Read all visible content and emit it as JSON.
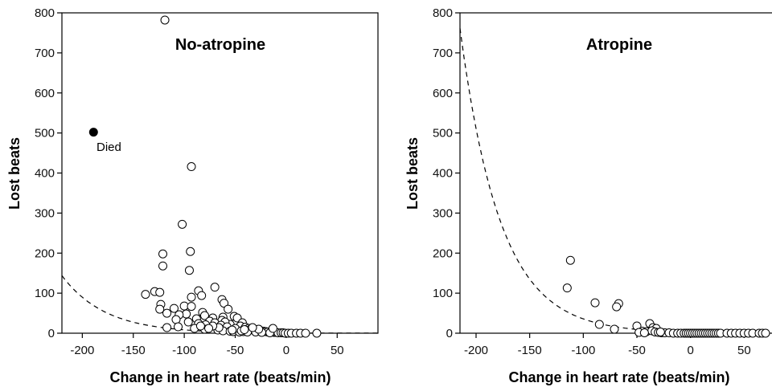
{
  "chart_data": [
    {
      "type": "scatter",
      "title": "No-atropine",
      "xlabel": "Change in heart rate (beats/min)",
      "ylabel": "Lost beats",
      "xlim": [
        -220,
        90
      ],
      "ylim": [
        0,
        800
      ],
      "xticks": [
        -200,
        -150,
        -100,
        -50,
        0,
        50
      ],
      "yticks": [
        0,
        100,
        200,
        300,
        400,
        500,
        600,
        700,
        800
      ],
      "fit_curve": "dashed exponential",
      "annotation": {
        "text": "Died",
        "x": -189,
        "y": 502
      },
      "filled_points": [
        [
          -189,
          502
        ]
      ],
      "points": [
        [
          -119,
          782
        ],
        [
          -93,
          416
        ],
        [
          -102,
          272
        ],
        [
          -94,
          204
        ],
        [
          -121,
          198
        ],
        [
          -121,
          168
        ],
        [
          -95,
          157
        ],
        [
          -70,
          115
        ],
        [
          -86,
          106
        ],
        [
          -129,
          104
        ],
        [
          -124,
          102
        ],
        [
          -138,
          97
        ],
        [
          -83,
          94
        ],
        [
          -93,
          90
        ],
        [
          -63,
          84
        ],
        [
          -61,
          75
        ],
        [
          -123,
          72
        ],
        [
          -100,
          68
        ],
        [
          -110,
          62
        ],
        [
          -124,
          60
        ],
        [
          -57,
          60
        ],
        [
          -93,
          67
        ],
        [
          -117,
          50
        ],
        [
          -98,
          48
        ],
        [
          -105,
          46
        ],
        [
          -82,
          52
        ],
        [
          -80,
          44
        ],
        [
          -88,
          36
        ],
        [
          -62,
          40
        ],
        [
          -72,
          38
        ],
        [
          -63,
          32
        ],
        [
          -51,
          42
        ],
        [
          -48,
          38
        ],
        [
          -43,
          26
        ],
        [
          -55,
          22
        ],
        [
          -60,
          28
        ],
        [
          -108,
          34
        ],
        [
          -96,
          28
        ],
        [
          -75,
          30
        ],
        [
          -70,
          26
        ],
        [
          -86,
          24
        ],
        [
          -79,
          21
        ],
        [
          -64,
          20
        ],
        [
          -58,
          16
        ],
        [
          -45,
          18
        ],
        [
          -40,
          15
        ],
        [
          -37,
          12
        ],
        [
          -35,
          10
        ],
        [
          -32,
          8
        ],
        [
          -28,
          7
        ],
        [
          -25,
          6
        ],
        [
          -22,
          5
        ],
        [
          -20,
          4
        ],
        [
          -18,
          3
        ],
        [
          -15,
          3
        ],
        [
          -12,
          2
        ],
        [
          -10,
          2
        ],
        [
          -8,
          1
        ],
        [
          -5,
          1
        ],
        [
          -3,
          1
        ],
        [
          -1,
          0
        ],
        [
          2,
          0
        ],
        [
          5,
          0
        ],
        [
          10,
          0
        ],
        [
          14,
          0
        ],
        [
          19,
          0
        ],
        [
          30,
          0
        ],
        [
          -117,
          14
        ],
        [
          -106,
          16
        ],
        [
          -90,
          12
        ],
        [
          -80,
          10
        ],
        [
          -67,
          8
        ],
        [
          -62,
          6
        ],
        [
          -55,
          5
        ],
        [
          -52,
          4
        ],
        [
          -46,
          3
        ],
        [
          -42,
          4
        ],
        [
          -38,
          3
        ],
        [
          -50,
          12
        ],
        [
          -66,
          14
        ],
        [
          -72,
          18
        ],
        [
          -76,
          12
        ],
        [
          -84,
          18
        ],
        [
          -53,
          8
        ],
        [
          -44,
          6
        ],
        [
          -30,
          3
        ],
        [
          -24,
          2
        ],
        [
          -16,
          1
        ],
        [
          -13,
          12
        ],
        [
          -27,
          10
        ],
        [
          -33,
          14
        ],
        [
          -41,
          9
        ]
      ]
    },
    {
      "type": "scatter",
      "title": "Atropine",
      "xlabel": "Change in heart rate (beats/min)",
      "ylabel": "Lost beats",
      "xlim": [
        -215,
        85
      ],
      "ylim": [
        0,
        800
      ],
      "xticks": [
        -200,
        -150,
        -100,
        -50,
        0,
        50
      ],
      "yticks": [
        0,
        100,
        200,
        300,
        400,
        500,
        600,
        700,
        800
      ],
      "fit_curve": "dashed exponential",
      "points": [
        [
          -112,
          182
        ],
        [
          -115,
          113
        ],
        [
          -89,
          76
        ],
        [
          -67,
          74
        ],
        [
          -69,
          66
        ],
        [
          -85,
          22
        ],
        [
          -71,
          10
        ],
        [
          -50,
          18
        ],
        [
          -38,
          24
        ],
        [
          -35,
          14
        ],
        [
          -32,
          12
        ],
        [
          -45,
          5
        ],
        [
          -41,
          4
        ],
        [
          -36,
          6
        ],
        [
          -33,
          3
        ],
        [
          -30,
          2
        ],
        [
          -27,
          1
        ],
        [
          -24,
          1
        ],
        [
          -20,
          1
        ],
        [
          -16,
          0
        ],
        [
          -12,
          0
        ],
        [
          -9,
          0
        ],
        [
          -6,
          0
        ],
        [
          -4,
          0
        ],
        [
          -2,
          0
        ],
        [
          0,
          0
        ],
        [
          2,
          0
        ],
        [
          4,
          0
        ],
        [
          6,
          0
        ],
        [
          8,
          0
        ],
        [
          10,
          0
        ],
        [
          12,
          0
        ],
        [
          14,
          0
        ],
        [
          16,
          0
        ],
        [
          18,
          0
        ],
        [
          20,
          0
        ],
        [
          22,
          0
        ],
        [
          24,
          0
        ],
        [
          26,
          0
        ],
        [
          28,
          0
        ],
        [
          34,
          0
        ],
        [
          38,
          0
        ],
        [
          42,
          0
        ],
        [
          46,
          0
        ],
        [
          50,
          0
        ],
        [
          54,
          0
        ],
        [
          58,
          0
        ],
        [
          64,
          0
        ],
        [
          67,
          0
        ],
        [
          70,
          0
        ],
        [
          -48,
          2
        ],
        [
          -43,
          1
        ],
        [
          -28,
          3
        ]
      ]
    }
  ]
}
